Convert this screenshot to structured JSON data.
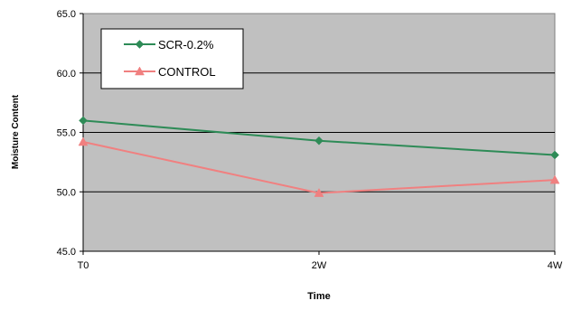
{
  "chart_data": {
    "type": "line",
    "title": "",
    "xlabel": "Time",
    "ylabel": "Moisture Content",
    "categories": [
      "T0",
      "2W",
      "4W"
    ],
    "ylim": [
      45.0,
      65.0
    ],
    "yticks": [
      "45.0",
      "50.0",
      "55.0",
      "60.0",
      "65.0"
    ],
    "grid": true,
    "plot_background": "#c0c0c0",
    "legend_position": "top-left",
    "series": [
      {
        "name": "SCR-0.2%",
        "values": [
          56.0,
          54.3,
          53.1
        ],
        "color": "#2e8b57",
        "marker": "diamond"
      },
      {
        "name": "CONTROL",
        "values": [
          54.2,
          49.9,
          51.0
        ],
        "color": "#f08080",
        "marker": "triangle"
      }
    ]
  }
}
